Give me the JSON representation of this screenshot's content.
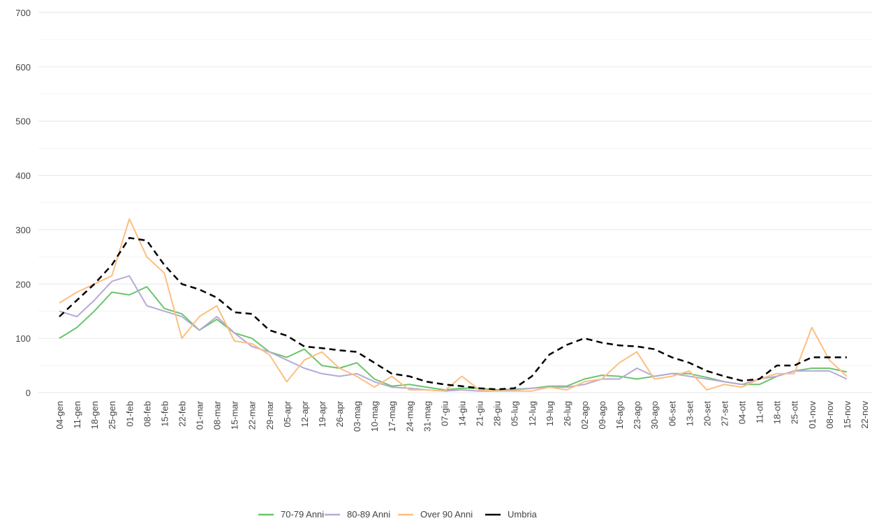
{
  "chart_data": {
    "type": "line",
    "categories": [
      "04-gen",
      "11-gen",
      "18-gen",
      "25-gen",
      "01-feb",
      "08-feb",
      "15-feb",
      "22-feb",
      "01-mar",
      "08-mar",
      "15-mar",
      "22-mar",
      "29-mar",
      "05-apr",
      "12-apr",
      "19-apr",
      "26-apr",
      "03-mag",
      "10-mag",
      "17-mag",
      "24-mag",
      "31-mag",
      "07-giu",
      "14-giu",
      "21-giu",
      "28-giu",
      "05-lug",
      "12-lug",
      "19-lug",
      "26-lug",
      "02-ago",
      "09-ago",
      "16-ago",
      "23-ago",
      "30-ago",
      "06-set",
      "13-set",
      "20-set",
      "27-set",
      "04-ott",
      "11-ott",
      "18-ott",
      "25-ott",
      "01-nov",
      "08-nov",
      "15-nov",
      "22-nov"
    ],
    "series": [
      {
        "name": "70-79 Anni",
        "color": "#6cc46c",
        "dash": false,
        "values": [
          100,
          120,
          150,
          185,
          180,
          195,
          155,
          145,
          115,
          135,
          110,
          100,
          75,
          65,
          80,
          50,
          45,
          55,
          25,
          12,
          15,
          10,
          5,
          8,
          8,
          5,
          6,
          8,
          12,
          12,
          25,
          32,
          30,
          25,
          30,
          35,
          35,
          28,
          20,
          15,
          15,
          30,
          40,
          45,
          45,
          38,
          null
        ]
      },
      {
        "name": "80-89 Anni",
        "color": "#b7a9d6",
        "dash": false,
        "values": [
          150,
          140,
          170,
          205,
          215,
          160,
          150,
          140,
          115,
          140,
          110,
          85,
          75,
          60,
          45,
          35,
          30,
          35,
          20,
          10,
          8,
          5,
          3,
          5,
          3,
          3,
          5,
          8,
          10,
          10,
          15,
          25,
          25,
          45,
          30,
          35,
          30,
          25,
          20,
          15,
          25,
          30,
          40,
          40,
          40,
          25,
          null
        ]
      },
      {
        "name": "Over 90 Anni",
        "color": "#fcbf80",
        "dash": false,
        "values": [
          165,
          185,
          200,
          215,
          320,
          250,
          220,
          100,
          140,
          160,
          95,
          90,
          70,
          20,
          60,
          75,
          45,
          30,
          10,
          30,
          5,
          5,
          3,
          30,
          5,
          3,
          3,
          3,
          10,
          5,
          20,
          25,
          55,
          75,
          25,
          30,
          40,
          5,
          15,
          10,
          25,
          35,
          35,
          120,
          60,
          30,
          null
        ]
      },
      {
        "name": "Umbria",
        "color": "#000000",
        "dash": true,
        "values": [
          140,
          170,
          200,
          235,
          285,
          280,
          235,
          200,
          190,
          175,
          148,
          145,
          115,
          105,
          85,
          82,
          78,
          75,
          55,
          35,
          30,
          20,
          15,
          12,
          8,
          6,
          8,
          30,
          70,
          88,
          100,
          92,
          87,
          85,
          80,
          65,
          55,
          40,
          30,
          22,
          25,
          50,
          50,
          65,
          65,
          65,
          null
        ]
      }
    ],
    "ylim": [
      0,
      700
    ],
    "yticks": [
      0,
      100,
      200,
      300,
      400,
      500,
      600,
      700
    ],
    "grid": true
  }
}
